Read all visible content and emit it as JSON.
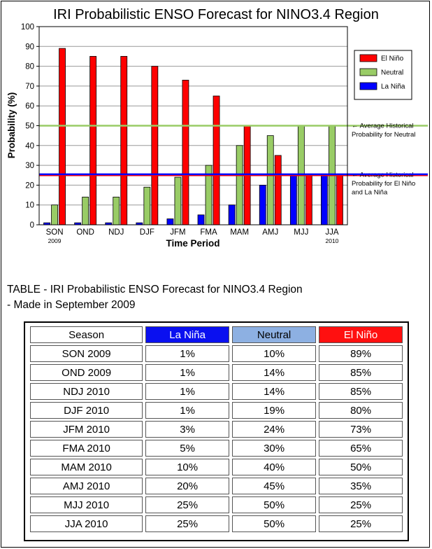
{
  "chart_data": {
    "type": "bar",
    "title": "IRI Probabilistic ENSO Forecast for NINO3.4 Region",
    "xlabel": "Time Period",
    "ylabel": "Probability (%)",
    "ylim": [
      0,
      100
    ],
    "yticks": [
      0,
      10,
      20,
      30,
      40,
      50,
      60,
      70,
      80,
      90,
      100
    ],
    "grid": true,
    "legend_position": "right",
    "categories": [
      "SON",
      "OND",
      "NDJ",
      "DJF",
      "JFM",
      "FMA",
      "MAM",
      "AMJ",
      "MJJ",
      "JJA"
    ],
    "category_sublabels": [
      "2009",
      "",
      "",
      "",
      "",
      "",
      "",
      "",
      "",
      "2010"
    ],
    "series": [
      {
        "name": "La Niña",
        "color": "#0000ff",
        "values": [
          1,
          1,
          1,
          1,
          3,
          5,
          10,
          20,
          25,
          25
        ]
      },
      {
        "name": "Neutral",
        "color": "#99cc66",
        "values": [
          10,
          14,
          14,
          19,
          24,
          30,
          40,
          45,
          50,
          50
        ]
      },
      {
        "name": "El Niño",
        "color": "#ff0000",
        "values": [
          89,
          85,
          85,
          80,
          73,
          65,
          50,
          35,
          25,
          25
        ]
      }
    ],
    "legend_order": [
      "El Niño",
      "Neutral",
      "La Niña"
    ],
    "reference_lines": [
      {
        "value": 50,
        "color": "#99cc66",
        "label_lines": [
          "← Average Historical",
          "Probability for Neutral"
        ]
      },
      {
        "value": 25,
        "color": "#ff0000",
        "label_lines": [
          "← Average Historical",
          "Probability for El Niño",
          "and La Niña"
        ]
      },
      {
        "value": 25.5,
        "color": "#0000ff"
      }
    ]
  },
  "table": {
    "heading_line1": "TABLE - IRI Probabilistic ENSO Forecast for NINO3.4 Region",
    "heading_line2": "- Made in September 2009",
    "headers": [
      "Season",
      "La Niña",
      "Neutral",
      "El Niño"
    ],
    "rows": [
      [
        "SON 2009",
        "1%",
        "10%",
        "89%"
      ],
      [
        "OND 2009",
        "1%",
        "14%",
        "85%"
      ],
      [
        "NDJ 2010",
        "1%",
        "14%",
        "85%"
      ],
      [
        "DJF 2010",
        "1%",
        "19%",
        "80%"
      ],
      [
        "JFM 2010",
        "3%",
        "24%",
        "73%"
      ],
      [
        "FMA 2010",
        "5%",
        "30%",
        "65%"
      ],
      [
        "MAM 2010",
        "10%",
        "40%",
        "50%"
      ],
      [
        "AMJ 2010",
        "20%",
        "45%",
        "35%"
      ],
      [
        "MJJ 2010",
        "25%",
        "50%",
        "25%"
      ],
      [
        "JJA 2010",
        "25%",
        "50%",
        "25%"
      ]
    ]
  }
}
